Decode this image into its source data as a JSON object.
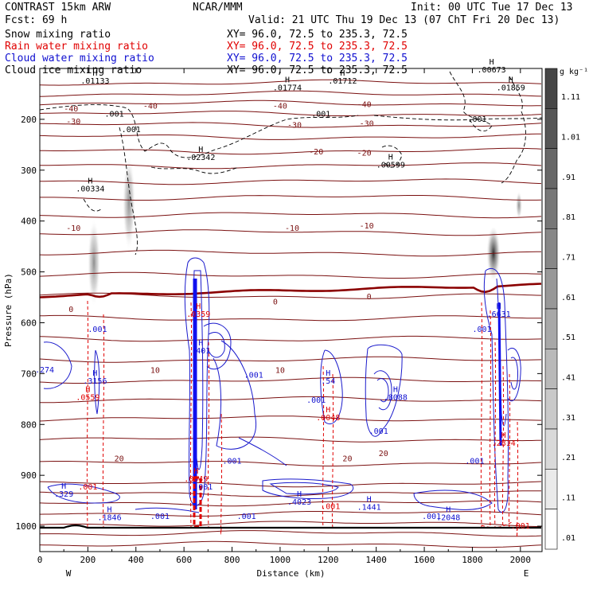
{
  "header": {
    "model": "CONTRAST 15km ARW",
    "org": "NCAR/MMM",
    "init": "Init: 00 UTC Tue 17 Dec 13",
    "fcst": "Fcst:   69 h",
    "valid": "Valid: 21 UTC Thu 19 Dec 13 (07 ChT Fri 20 Dec 13)",
    "fields": [
      {
        "name": "Snow mixing ratio",
        "xy": "XY=   96.0, 72.5 to 235.3, 72.5",
        "color": "#000000"
      },
      {
        "name": "Rain water mixing ratio",
        "xy": "XY=   96.0, 72.5 to 235.3, 72.5",
        "color": "#e00000"
      },
      {
        "name": "Cloud water mixing ratio",
        "xy": "XY=   96.0, 72.5 to 235.3, 72.5",
        "color": "#1010d0"
      },
      {
        "name": "Cloud ice mixing ratio",
        "xy": "XY=   96.0, 72.5 to 235.3, 72.5",
        "color": "#000000"
      }
    ]
  },
  "chart_data": {
    "type": "cross-section",
    "xlabel": "Distance (km)",
    "ylabel": "Pressure (hPa)",
    "xlim": [
      0,
      2090
    ],
    "ylim": [
      1050,
      100
    ],
    "xticks": [
      0,
      200,
      400,
      600,
      800,
      1000,
      1200,
      1400,
      1600,
      1800,
      2000
    ],
    "yticks": [
      200,
      300,
      400,
      500,
      600,
      700,
      800,
      900,
      1000
    ],
    "left_label": "W",
    "right_label": "E",
    "colorbar": {
      "unit": "g kg⁻¹",
      "labels": [
        "1.11",
        "1.01",
        ".91",
        ".81",
        ".71",
        ".61",
        ".51",
        ".41",
        ".31",
        ".21",
        ".11",
        ".01"
      ],
      "values": [
        1.11,
        1.01,
        0.91,
        0.81,
        0.71,
        0.61,
        0.51,
        0.41,
        0.31,
        0.21,
        0.11,
        0.01
      ]
    },
    "temperature_isotherms": [
      {
        "label": "-40",
        "x": 130,
        "p": 178
      },
      {
        "label": "-40",
        "x": 460,
        "p": 173
      },
      {
        "label": "-40",
        "x": 1000,
        "p": 173
      },
      {
        "label": "-40",
        "x": 1350,
        "p": 170
      },
      {
        "label": "-30",
        "x": 140,
        "p": 203
      },
      {
        "label": "-30",
        "x": 1060,
        "p": 210
      },
      {
        "label": "-30",
        "x": 1360,
        "p": 207
      },
      {
        "label": "-20",
        "x": 1150,
        "p": 263
      },
      {
        "label": "-20",
        "x": 1350,
        "p": 265
      },
      {
        "label": "-10",
        "x": 140,
        "p": 413
      },
      {
        "label": "-10",
        "x": 1050,
        "p": 413
      },
      {
        "label": "-10",
        "x": 1360,
        "p": 408
      },
      {
        "label": "0",
        "x": 130,
        "p": 573
      },
      {
        "label": "0",
        "x": 980,
        "p": 558
      },
      {
        "label": "0",
        "x": 1370,
        "p": 548
      },
      {
        "label": "10",
        "x": 480,
        "p": 692
      },
      {
        "label": "10",
        "x": 1000,
        "p": 692
      },
      {
        "label": "20",
        "x": 330,
        "p": 866
      },
      {
        "label": "20",
        "x": 1280,
        "p": 866
      },
      {
        "label": "20",
        "x": 1430,
        "p": 856
      }
    ],
    "extrema": [
      {
        "type": "H",
        "value": ".01133",
        "x": 230,
        "p": 130,
        "field": "snow"
      },
      {
        "type": "H",
        "value": ".01774",
        "x": 1030,
        "p": 143,
        "field": "snow"
      },
      {
        "type": "H",
        "value": ".01712",
        "x": 1260,
        "p": 130,
        "field": "snow"
      },
      {
        "type": "H",
        "value": ".00673",
        "x": 1880,
        "p": 108,
        "field": "snow"
      },
      {
        "type": "H",
        "value": ".01859",
        "x": 1960,
        "p": 143,
        "field": "snow"
      },
      {
        "type": "H",
        "value": ".02342",
        "x": 670,
        "p": 280,
        "field": "snow"
      },
      {
        "type": "H",
        "value": ".00599",
        "x": 1460,
        "p": 295,
        "field": "snow"
      },
      {
        "type": "H",
        "value": ".00334",
        "x": 210,
        "p": 342,
        "field": "ice"
      },
      {
        "type": "H",
        "value": ".0359",
        "x": 660,
        "p": 588,
        "field": "rain"
      },
      {
        "type": "H",
        "value": ".6631",
        "x": 1910,
        "p": 588,
        "field": "cloud"
      },
      {
        "type": "H",
        "value": ".401",
        "x": 670,
        "p": 660,
        "field": "cloud"
      },
      {
        "type": "H",
        "value": ".3156",
        "x": 230,
        "p": 720,
        "field": "cloud"
      },
      {
        "type": "H",
        "value": ".0559",
        "x": 200,
        "p": 752,
        "field": "rain"
      },
      {
        "type": "H",
        "value": ".54",
        "x": 1200,
        "p": 720,
        "field": "cloud"
      },
      {
        "type": "H",
        "value": ".8088",
        "x": 1480,
        "p": 752,
        "field": "cloud"
      },
      {
        "type": "H",
        "value": ".0048",
        "x": 1200,
        "p": 792,
        "field": "rain"
      },
      {
        "type": "H",
        "value": ".2814",
        "x": 1930,
        "p": 842,
        "field": "rain"
      },
      {
        "type": "H",
        "value": ".0049",
        "x": 650,
        "p": 912,
        "field": "rain"
      },
      {
        "type": "H",
        "value": ".329",
        "x": 100,
        "p": 942,
        "field": "cloud"
      },
      {
        "type": "H",
        "value": ".1846",
        "x": 290,
        "p": 988,
        "field": "cloud"
      },
      {
        "type": "H",
        "value": ".4023",
        "x": 1080,
        "p": 958,
        "field": "cloud"
      },
      {
        "type": "H",
        "value": ".1441",
        "x": 1370,
        "p": 968,
        "field": "cloud"
      },
      {
        "type": "H",
        "value": ".2048",
        "x": 1700,
        "p": 988,
        "field": "cloud"
      }
    ],
    "contour_labels": [
      {
        "text": ".001",
        "x": 310,
        "p": 195,
        "color": "#000000"
      },
      {
        "text": ".001",
        "x": 380,
        "p": 225,
        "color": "#000000"
      },
      {
        "text": ".001",
        "x": 1170,
        "p": 195,
        "color": "#000000"
      },
      {
        "text": ".001",
        "x": 1820,
        "p": 205,
        "color": "#000000"
      },
      {
        "text": ".001",
        "x": 890,
        "p": 708,
        "color": "#1010d0"
      },
      {
        "text": ".001",
        "x": 240,
        "p": 618,
        "color": "#1010d0"
      },
      {
        "text": ".001",
        "x": 1150,
        "p": 757,
        "color": "#1010d0"
      },
      {
        "text": ".001",
        "x": 1410,
        "p": 818,
        "color": "#1010d0"
      },
      {
        "text": ".001",
        "x": 800,
        "p": 877,
        "color": "#1010d0"
      },
      {
        "text": ".001",
        "x": 1810,
        "p": 877,
        "color": "#1010d0"
      },
      {
        "text": ".001",
        "x": 1840,
        "p": 618,
        "color": "#1010d0"
      },
      {
        "text": ".001",
        "x": 860,
        "p": 986,
        "color": "#1010d0"
      },
      {
        "text": ".001",
        "x": 500,
        "p": 986,
        "color": "#1010d0"
      },
      {
        "text": ".001",
        "x": 1630,
        "p": 986,
        "color": "#1010d0"
      },
      {
        "text": ".001",
        "x": 200,
        "p": 928,
        "color": "#e00000"
      },
      {
        "text": ".001",
        "x": 1210,
        "p": 966,
        "color": "#e00000"
      },
      {
        "text": ".001",
        "x": 2000,
        "p": 1005,
        "color": "#e00000"
      },
      {
        "text": ".001",
        "x": 680,
        "p": 928,
        "color": "#1010d0"
      },
      {
        "text": ".274",
        "x": 20,
        "p": 698,
        "color": "#1010d0"
      }
    ]
  }
}
